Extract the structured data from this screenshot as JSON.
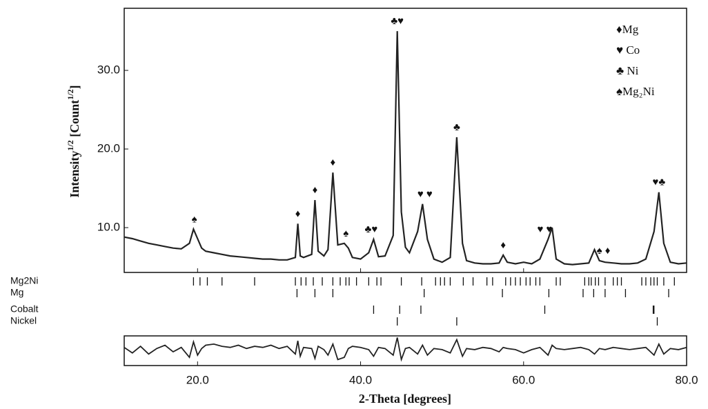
{
  "chart_data": {
    "type": "line",
    "xlabel": "2-Theta [degrees]",
    "ylabel": [
      "Intensity",
      "1/2",
      " [Count",
      "1/2",
      "]"
    ],
    "xlim": [
      11,
      80
    ],
    "ylim": [
      4.3,
      37.9
    ],
    "xticks": [
      {
        "value": 20,
        "label": "20.0"
      },
      {
        "value": 40,
        "label": "40.0"
      },
      {
        "value": 60,
        "label": "60.0"
      },
      {
        "value": 80,
        "label": "80.0"
      }
    ],
    "yticks": [
      {
        "value": 10,
        "label": "10.0"
      },
      {
        "value": 20,
        "label": "20.0"
      },
      {
        "value": 30,
        "label": "30.0"
      }
    ],
    "color": "#222222",
    "x": [
      11,
      12,
      13,
      14,
      15,
      16,
      17,
      18,
      19,
      19.5,
      20,
      20.5,
      21,
      22,
      23,
      24,
      25,
      26,
      27,
      28,
      29,
      30,
      31,
      32,
      32.3,
      32.6,
      33,
      34,
      34.4,
      34.8,
      35.5,
      36,
      36.6,
      37.2,
      38,
      38.5,
      39,
      40,
      41,
      41.6,
      42.2,
      43,
      44,
      44.5,
      45,
      45.5,
      46,
      47,
      47.6,
      48.2,
      49,
      50,
      51,
      51.8,
      52.5,
      53,
      54,
      55,
      56,
      57,
      57.5,
      58,
      59,
      60,
      61,
      62,
      63,
      63.5,
      64,
      65,
      66,
      67,
      68,
      68.7,
      69.3,
      70,
      71,
      72,
      73,
      74,
      75,
      76,
      76.6,
      77.2,
      78,
      79,
      80
    ],
    "values": [
      8.8,
      8.6,
      8.3,
      8.0,
      7.8,
      7.6,
      7.4,
      7.3,
      8.0,
      9.8,
      8.6,
      7.4,
      7.0,
      6.8,
      6.6,
      6.4,
      6.3,
      6.2,
      6.1,
      6.0,
      6.0,
      5.9,
      5.9,
      6.2,
      10.5,
      6.4,
      6.2,
      6.6,
      13.5,
      7.0,
      6.4,
      7.2,
      17,
      7.8,
      8.0,
      7.4,
      6.2,
      6.0,
      6.8,
      8.5,
      6.3,
      6.4,
      9,
      35,
      12,
      7.5,
      6.8,
      9.5,
      13,
      8.5,
      6.0,
      5.6,
      6.2,
      21.5,
      8,
      5.8,
      5.5,
      5.4,
      5.4,
      5.5,
      6.5,
      5.6,
      5.4,
      5.6,
      5.4,
      6.0,
      8.5,
      10,
      6,
      5.4,
      5.3,
      5.4,
      5.5,
      7.2,
      5.8,
      5.6,
      5.5,
      5.4,
      5.4,
      5.5,
      6.0,
      9.5,
      14.5,
      8,
      5.6,
      5.4,
      5.5
    ],
    "difference": [
      0.3,
      -0.2,
      0.4,
      -0.3,
      0.2,
      0.5,
      -0.1,
      0.3,
      -0.6,
      0.8,
      -0.4,
      0.2,
      0.5,
      0.6,
      0.4,
      0.3,
      0.5,
      0.2,
      0.4,
      0.3,
      0.5,
      0.2,
      0.4,
      -0.3,
      0.9,
      -0.5,
      0.3,
      0.2,
      -0.7,
      0.4,
      0.1,
      -0.4,
      0.6,
      -0.8,
      -0.6,
      0.2,
      0.4,
      0.3,
      0.1,
      -0.5,
      0.3,
      0.2,
      -0.4,
      1.2,
      -0.8,
      0.2,
      0.3,
      -0.3,
      0.5,
      -0.4,
      0.2,
      0.1,
      -0.2,
      1.0,
      -0.5,
      0.2,
      0.1,
      0.3,
      0.2,
      -0.1,
      0.3,
      0.2,
      0.1,
      -0.2,
      0.1,
      0.3,
      -0.4,
      0.5,
      0.2,
      0.1,
      0.2,
      0.3,
      0.1,
      -0.3,
      0.2,
      0.1,
      0.3,
      0.2,
      0.1,
      0.2,
      0.3,
      -0.4,
      0.6,
      -0.3,
      0.2,
      0.1,
      0.3
    ],
    "legend": [
      "♦Mg",
      "♥ Co",
      "♣ Ni",
      "♠Mg₂Ni"
    ],
    "peak_markers": [
      {
        "label": "♠",
        "x": 19.6
      },
      {
        "label": "♦",
        "x": 32.3
      },
      {
        "label": "♦",
        "x": 34.4
      },
      {
        "label": "♦",
        "x": 36.6
      },
      {
        "label": "♠",
        "x": 38.2
      },
      {
        "label": "♣♥",
        "x": 41.3
      },
      {
        "label": "♣♥",
        "x": 44.5
      },
      {
        "label": "♥ ♥",
        "x": 47.9
      },
      {
        "label": "♣",
        "x": 51.8
      },
      {
        "label": "♦",
        "x": 57.5
      },
      {
        "label": "♥ ♥",
        "x": 62.6
      },
      {
        "label": "♠ ♦",
        "x": 69.8
      },
      {
        "label": "♥♣",
        "x": 76.6
      }
    ],
    "phases": [
      {
        "name": "Mg2Ni",
        "positions": [
          19.5,
          20.3,
          21.2,
          23,
          27,
          32,
          32.7,
          33.3,
          34.2,
          35.3,
          36.6,
          37.5,
          38.2,
          38.6,
          39.5,
          41,
          42,
          42.5,
          45,
          47.5,
          49.2,
          49.8,
          50.3,
          51,
          52.6,
          53.8,
          55.5,
          56.2,
          57.8,
          58.4,
          59,
          59.6,
          60.3,
          60.8,
          61.5,
          62,
          64,
          64.5,
          67.5,
          68,
          68.3,
          68.8,
          69.2,
          70,
          71,
          71.5,
          72,
          74.5,
          75,
          75.6,
          76,
          76.4,
          77.2,
          78.5
        ]
      },
      {
        "name": "Mg",
        "positions": [
          32.2,
          34.4,
          36.6,
          47.8,
          57.4,
          63.1,
          67.3,
          68.6,
          70.0,
          72.5,
          77.8
        ]
      },
      {
        "name": "Cobalt",
        "positions": [
          41.6,
          44.8,
          47.4,
          62.6,
          75.9,
          76.0
        ]
      },
      {
        "name": "Nickel",
        "positions": [
          44.5,
          51.8,
          76.4
        ]
      }
    ]
  }
}
